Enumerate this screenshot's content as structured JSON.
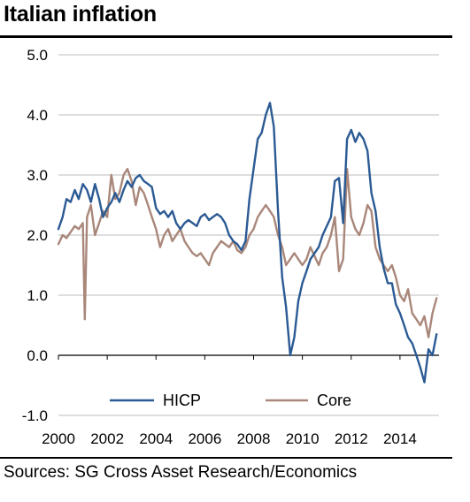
{
  "title": "Italian inflation",
  "source": "Sources: SG Cross Asset Research/Economics",
  "chart_data": {
    "type": "line",
    "title": "Italian inflation",
    "xlabel": "",
    "ylabel": "",
    "xlim": [
      2000,
      2015.6
    ],
    "ylim": [
      -1.0,
      5.0
    ],
    "x_ticks": [
      2000,
      2002,
      2004,
      2006,
      2008,
      2010,
      2012,
      2014
    ],
    "x_tick_labels": [
      "2000",
      "2002",
      "2004",
      "2006",
      "2008",
      "2010",
      "2012",
      "2014"
    ],
    "y_ticks": [
      -1.0,
      0.0,
      1.0,
      2.0,
      3.0,
      4.0,
      5.0
    ],
    "y_tick_labels": [
      "-1.0",
      "0.0",
      "1.0",
      "2.0",
      "3.0",
      "4.0",
      "5.0"
    ],
    "grid": true,
    "legend_position": "bottom-center",
    "series": [
      {
        "name": "HICP",
        "color": "#2B5A94",
        "points": [
          [
            2000.0,
            2.1
          ],
          [
            2000.17,
            2.3
          ],
          [
            2000.33,
            2.6
          ],
          [
            2000.5,
            2.55
          ],
          [
            2000.67,
            2.75
          ],
          [
            2000.83,
            2.6
          ],
          [
            2001.0,
            2.85
          ],
          [
            2001.17,
            2.75
          ],
          [
            2001.33,
            2.55
          ],
          [
            2001.5,
            2.85
          ],
          [
            2001.67,
            2.6
          ],
          [
            2001.83,
            2.3
          ],
          [
            2002.0,
            2.45
          ],
          [
            2002.17,
            2.55
          ],
          [
            2002.33,
            2.7
          ],
          [
            2002.5,
            2.55
          ],
          [
            2002.67,
            2.75
          ],
          [
            2002.83,
            2.9
          ],
          [
            2003.0,
            2.8
          ],
          [
            2003.17,
            2.95
          ],
          [
            2003.33,
            3.0
          ],
          [
            2003.5,
            2.9
          ],
          [
            2003.67,
            2.85
          ],
          [
            2003.83,
            2.8
          ],
          [
            2004.0,
            2.45
          ],
          [
            2004.17,
            2.35
          ],
          [
            2004.33,
            2.4
          ],
          [
            2004.5,
            2.3
          ],
          [
            2004.67,
            2.4
          ],
          [
            2004.83,
            2.2
          ],
          [
            2005.0,
            2.1
          ],
          [
            2005.17,
            2.2
          ],
          [
            2005.33,
            2.25
          ],
          [
            2005.5,
            2.2
          ],
          [
            2005.67,
            2.15
          ],
          [
            2005.83,
            2.3
          ],
          [
            2006.0,
            2.35
          ],
          [
            2006.17,
            2.25
          ],
          [
            2006.33,
            2.3
          ],
          [
            2006.5,
            2.35
          ],
          [
            2006.67,
            2.3
          ],
          [
            2006.83,
            2.2
          ],
          [
            2007.0,
            2.0
          ],
          [
            2007.17,
            1.9
          ],
          [
            2007.33,
            1.85
          ],
          [
            2007.5,
            1.75
          ],
          [
            2007.67,
            1.9
          ],
          [
            2007.83,
            2.6
          ],
          [
            2008.0,
            3.1
          ],
          [
            2008.17,
            3.6
          ],
          [
            2008.33,
            3.7
          ],
          [
            2008.5,
            4.0
          ],
          [
            2008.67,
            4.2
          ],
          [
            2008.83,
            3.8
          ],
          [
            2009.0,
            2.4
          ],
          [
            2009.17,
            1.3
          ],
          [
            2009.33,
            0.8
          ],
          [
            2009.5,
            0.0
          ],
          [
            2009.67,
            0.3
          ],
          [
            2009.83,
            0.9
          ],
          [
            2010.0,
            1.2
          ],
          [
            2010.17,
            1.4
          ],
          [
            2010.33,
            1.6
          ],
          [
            2010.5,
            1.7
          ],
          [
            2010.67,
            1.8
          ],
          [
            2010.83,
            2.0
          ],
          [
            2011.0,
            2.15
          ],
          [
            2011.17,
            2.3
          ],
          [
            2011.33,
            2.9
          ],
          [
            2011.5,
            2.95
          ],
          [
            2011.67,
            2.2
          ],
          [
            2011.83,
            3.6
          ],
          [
            2012.0,
            3.75
          ],
          [
            2012.17,
            3.55
          ],
          [
            2012.33,
            3.7
          ],
          [
            2012.5,
            3.6
          ],
          [
            2012.67,
            3.4
          ],
          [
            2012.83,
            2.7
          ],
          [
            2013.0,
            2.4
          ],
          [
            2013.17,
            1.8
          ],
          [
            2013.33,
            1.45
          ],
          [
            2013.5,
            1.2
          ],
          [
            2013.67,
            1.2
          ],
          [
            2013.83,
            0.85
          ],
          [
            2014.0,
            0.7
          ],
          [
            2014.17,
            0.5
          ],
          [
            2014.33,
            0.3
          ],
          [
            2014.5,
            0.2
          ],
          [
            2014.67,
            0.0
          ],
          [
            2014.83,
            -0.2
          ],
          [
            2015.0,
            -0.45
          ],
          [
            2015.17,
            0.1
          ],
          [
            2015.33,
            0.0
          ],
          [
            2015.5,
            0.35
          ]
        ]
      },
      {
        "name": "Core",
        "color": "#A9877A",
        "points": [
          [
            2000.0,
            1.85
          ],
          [
            2000.17,
            2.0
          ],
          [
            2000.33,
            1.95
          ],
          [
            2000.5,
            2.05
          ],
          [
            2000.67,
            2.15
          ],
          [
            2000.83,
            2.1
          ],
          [
            2001.0,
            2.2
          ],
          [
            2001.08,
            0.6
          ],
          [
            2001.17,
            2.3
          ],
          [
            2001.33,
            2.5
          ],
          [
            2001.5,
            2.0
          ],
          [
            2001.67,
            2.2
          ],
          [
            2001.83,
            2.4
          ],
          [
            2002.0,
            2.3
          ],
          [
            2002.17,
            3.0
          ],
          [
            2002.33,
            2.6
          ],
          [
            2002.5,
            2.7
          ],
          [
            2002.67,
            3.0
          ],
          [
            2002.83,
            3.1
          ],
          [
            2003.0,
            2.9
          ],
          [
            2003.17,
            2.5
          ],
          [
            2003.33,
            2.8
          ],
          [
            2003.5,
            2.7
          ],
          [
            2003.67,
            2.5
          ],
          [
            2003.83,
            2.3
          ],
          [
            2004.0,
            2.1
          ],
          [
            2004.17,
            1.8
          ],
          [
            2004.33,
            2.0
          ],
          [
            2004.5,
            2.1
          ],
          [
            2004.67,
            1.9
          ],
          [
            2004.83,
            2.0
          ],
          [
            2005.0,
            2.1
          ],
          [
            2005.17,
            1.9
          ],
          [
            2005.33,
            1.8
          ],
          [
            2005.5,
            1.7
          ],
          [
            2005.67,
            1.65
          ],
          [
            2005.83,
            1.7
          ],
          [
            2006.0,
            1.6
          ],
          [
            2006.17,
            1.5
          ],
          [
            2006.33,
            1.7
          ],
          [
            2006.5,
            1.8
          ],
          [
            2006.67,
            1.9
          ],
          [
            2006.83,
            1.85
          ],
          [
            2007.0,
            1.8
          ],
          [
            2007.17,
            1.9
          ],
          [
            2007.33,
            1.75
          ],
          [
            2007.5,
            1.7
          ],
          [
            2007.67,
            1.8
          ],
          [
            2007.83,
            2.0
          ],
          [
            2008.0,
            2.1
          ],
          [
            2008.17,
            2.3
          ],
          [
            2008.33,
            2.4
          ],
          [
            2008.5,
            2.5
          ],
          [
            2008.67,
            2.4
          ],
          [
            2008.83,
            2.3
          ],
          [
            2009.0,
            2.0
          ],
          [
            2009.17,
            1.8
          ],
          [
            2009.33,
            1.5
          ],
          [
            2009.5,
            1.6
          ],
          [
            2009.67,
            1.7
          ],
          [
            2009.83,
            1.6
          ],
          [
            2010.0,
            1.5
          ],
          [
            2010.17,
            1.6
          ],
          [
            2010.33,
            1.8
          ],
          [
            2010.5,
            1.65
          ],
          [
            2010.67,
            1.5
          ],
          [
            2010.83,
            1.7
          ],
          [
            2011.0,
            1.8
          ],
          [
            2011.17,
            2.0
          ],
          [
            2011.33,
            2.3
          ],
          [
            2011.5,
            1.4
          ],
          [
            2011.67,
            1.6
          ],
          [
            2011.83,
            3.1
          ],
          [
            2012.0,
            2.3
          ],
          [
            2012.17,
            2.1
          ],
          [
            2012.33,
            2.0
          ],
          [
            2012.5,
            2.2
          ],
          [
            2012.67,
            2.5
          ],
          [
            2012.83,
            2.4
          ],
          [
            2013.0,
            1.8
          ],
          [
            2013.17,
            1.6
          ],
          [
            2013.33,
            1.5
          ],
          [
            2013.5,
            1.4
          ],
          [
            2013.67,
            1.5
          ],
          [
            2013.83,
            1.3
          ],
          [
            2014.0,
            1.0
          ],
          [
            2014.17,
            0.9
          ],
          [
            2014.33,
            1.1
          ],
          [
            2014.5,
            0.7
          ],
          [
            2014.67,
            0.6
          ],
          [
            2014.83,
            0.5
          ],
          [
            2015.0,
            0.65
          ],
          [
            2015.17,
            0.3
          ],
          [
            2015.33,
            0.7
          ],
          [
            2015.5,
            0.95
          ]
        ]
      }
    ]
  }
}
